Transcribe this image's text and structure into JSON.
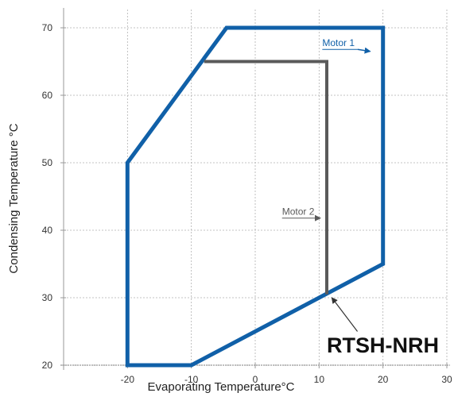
{
  "chart_data": {
    "type": "line",
    "xlabel": "Evaporating Temperature°C",
    "ylabel": "Condensing Temperature °C",
    "xlim": [
      -30,
      30
    ],
    "ylim": [
      20,
      70
    ],
    "x_ticks": [
      -20,
      -10,
      0,
      10,
      20,
      30
    ],
    "y_ticks": [
      20,
      30,
      40,
      50,
      60,
      70
    ],
    "grid": true,
    "model_label": "RTSH-NRH",
    "series": [
      {
        "name": "Motor 1",
        "color": "#1060a8",
        "closed": true,
        "points": [
          [
            -20,
            20
          ],
          [
            -10,
            20
          ],
          [
            20,
            35
          ],
          [
            20,
            70
          ],
          [
            -4.5,
            70
          ],
          [
            -20,
            50
          ]
        ]
      },
      {
        "name": "Motor 2",
        "color": "#5a5a5a",
        "closed": false,
        "points": [
          [
            11.2,
            30.5
          ],
          [
            11.2,
            65
          ],
          [
            -8,
            65
          ]
        ]
      }
    ],
    "annotations": [
      {
        "text_ref": "Motor 1",
        "arrow_to": [
          18,
          66.5
        ],
        "text_at": [
          10.5,
          66.8
        ]
      },
      {
        "text_ref": "Motor 2",
        "arrow_to": [
          10.2,
          41.8
        ],
        "text_at": [
          4.2,
          41.8
        ]
      },
      {
        "text_ref": "RTSH-NRH",
        "arrow_to": [
          12,
          30
        ],
        "text_at": [
          16,
          25
        ]
      }
    ]
  },
  "colors": {
    "motor1": "#1060a8",
    "motor2": "#5a5a5a",
    "grid": "#b0b0b0",
    "axis": "#999999"
  }
}
